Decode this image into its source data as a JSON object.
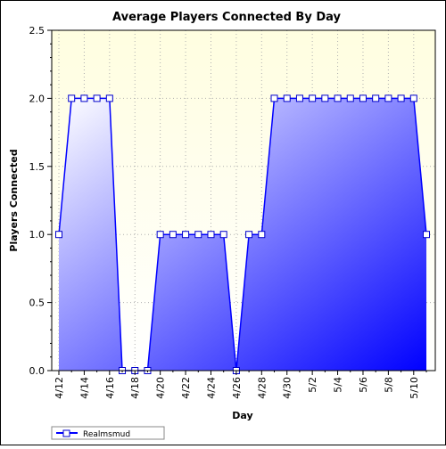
{
  "chart_data": {
    "type": "area",
    "title": "Average Players Connected By Day",
    "xlabel": "Day",
    "ylabel": "Players Connected",
    "x": [
      "4/12",
      "4/13",
      "4/14",
      "4/15",
      "4/16",
      "4/17",
      "4/18",
      "4/19",
      "4/20",
      "4/21",
      "4/22",
      "4/23",
      "4/24",
      "4/25",
      "4/26",
      "4/27",
      "4/28",
      "4/29",
      "4/30",
      "5/1",
      "5/2",
      "5/3",
      "5/4",
      "5/5",
      "5/6",
      "5/7",
      "5/8",
      "5/9",
      "5/10",
      "5/11"
    ],
    "x_tick_labels": [
      "4/12",
      "4/14",
      "4/16",
      "4/18",
      "4/20",
      "4/22",
      "4/24",
      "4/26",
      "4/28",
      "4/30",
      "5/2",
      "5/4",
      "5/6",
      "5/8",
      "5/10"
    ],
    "series": [
      {
        "name": "Realmsmud",
        "values": [
          1,
          2,
          2,
          2,
          2,
          0,
          0,
          0,
          1,
          1,
          1,
          1,
          1,
          1,
          0,
          1,
          1,
          2,
          2,
          2,
          2,
          2,
          2,
          2,
          2,
          2,
          2,
          2,
          2,
          1
        ]
      }
    ],
    "ylim": [
      0,
      2.5
    ],
    "y_ticks": [
      "0.0",
      "0.5",
      "1.0",
      "1.5",
      "2.0",
      "2.5"
    ],
    "grid": "dotted",
    "legend": "bottom-left",
    "colors": {
      "plot_bg_top": "#fffee0",
      "plot_bg_bottom": "#ffffff",
      "fill_light": "#ffffff",
      "fill_dark": "#0000ff",
      "line": "#0000ff",
      "marker_fill": "#ffffff",
      "marker_stroke": "#0000cc"
    }
  }
}
